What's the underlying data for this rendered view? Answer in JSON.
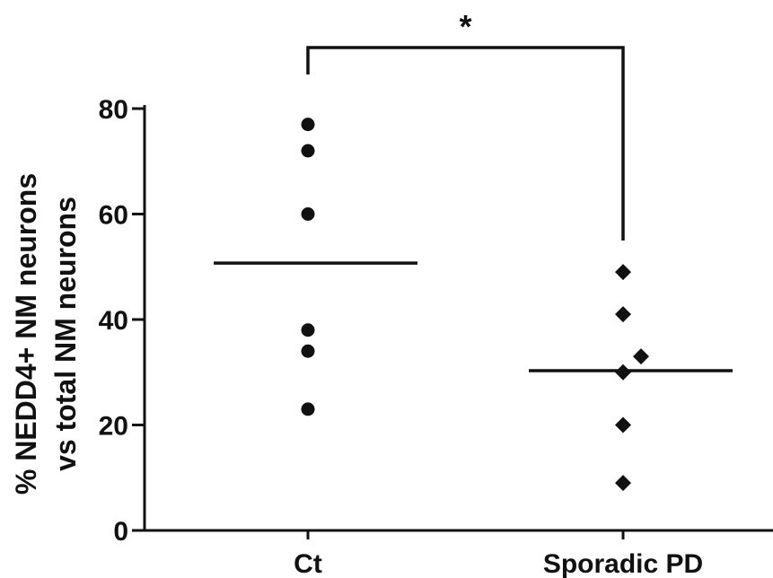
{
  "chart_data": {
    "type": "scatter",
    "ylabel_lines": [
      "% NEDD4+ NM neurons",
      "vs total NM neurons"
    ],
    "ylim": [
      0,
      80
    ],
    "yticks": [
      0,
      20,
      40,
      60,
      80
    ],
    "ytick_labels": [
      "0",
      "20",
      "40",
      "60",
      "80"
    ],
    "categories": [
      "Ct",
      "Sporadic PD"
    ],
    "series": [
      {
        "category": "Ct",
        "marker": "circle",
        "values": [
          77,
          72,
          60,
          38,
          34,
          23
        ],
        "mean": 50.7
      },
      {
        "category": "Sporadic PD",
        "marker": "diamond",
        "values": [
          49,
          41,
          33,
          30,
          20,
          9
        ],
        "mean": 30.3
      }
    ],
    "significance": {
      "label": "*",
      "between": [
        "Ct",
        "Sporadic PD"
      ]
    },
    "colors": {
      "ink": "#111111"
    }
  }
}
